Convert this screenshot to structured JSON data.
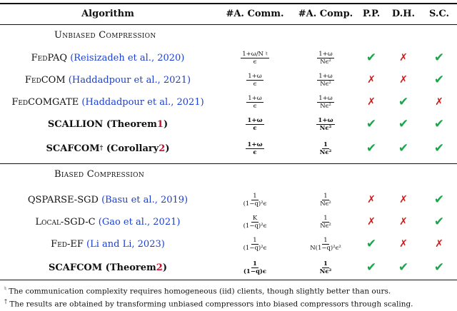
{
  "headers": {
    "algorithm": "Algorithm",
    "comm": "#A. Comm.",
    "comp": "#A. Comp.",
    "pp": "P.P.",
    "dh": "D.H.",
    "sc": "S.C."
  },
  "sections": {
    "unbiased": "Unbiased Compression",
    "biased": "Biased Compression"
  },
  "rows": [
    {
      "name": "FedPAQ",
      "cite": "(Reisizadeh et al., 2020)",
      "comm_num": "1+ω/N ♮",
      "comm_den": "ϵ",
      "comp_num": "1+ω",
      "comp_den": "Nϵ²",
      "pp": "check",
      "dh": "cross",
      "sc": "check"
    },
    {
      "name": "FedCOM",
      "cite": "(Haddadpour et al., 2021)",
      "comm_num": "1+ω",
      "comm_den": "ϵ",
      "comp_num": "1+ω",
      "comp_den": "Nϵ²",
      "pp": "cross",
      "dh": "cross",
      "sc": "check"
    },
    {
      "name": "FedCOMGATE",
      "cite": "(Haddadpour et al., 2021)",
      "comm_num": "1+ω",
      "comm_den": "ϵ",
      "comp_num": "1+ω",
      "comp_den": "Nϵ²",
      "pp": "cross",
      "dh": "check",
      "sc": "cross"
    },
    {
      "name": "SCALLION",
      "paren_pre": "(Theorem ",
      "paren_ref": "1",
      "paren_post": ")",
      "comm_num": "1+ω",
      "comm_den": "ϵ",
      "comp_num": "1+ω",
      "comp_den": "Nϵ²",
      "pp": "check",
      "dh": "check",
      "sc": "check"
    },
    {
      "name": "SCAFCOM",
      "dagger": "†",
      "paren_pre": "(Corollary ",
      "paren_ref": "2",
      "paren_post": ")",
      "comm_num": "1+ω",
      "comm_den": "ϵ",
      "comp_num": "1",
      "comp_den": "Nϵ²",
      "pp": "check",
      "dh": "check",
      "sc": "check"
    },
    {
      "name": "QSPARSE-SGD",
      "cite": "(Basu et al., 2019)",
      "comm_num": "1",
      "comm_den": "(1−q)²ϵ",
      "comp_num": "1",
      "comp_den": "Nϵ²",
      "pp": "cross",
      "dh": "cross",
      "sc": "check"
    },
    {
      "name": "Local-SGD-C",
      "cite": "(Gao et al., 2021)",
      "comm_num": "K",
      "comm_den": "(1−q)²ϵ",
      "comp_num": "1",
      "comp_den": "Nϵ²",
      "pp": "cross",
      "dh": "cross",
      "sc": "check"
    },
    {
      "name": "Fed-EF",
      "cite": "(Li and Li, 2023)",
      "comm_num": "1",
      "comm_den": "(1−q)²ϵ",
      "comp_num": "1",
      "comp_den": "N(1−q)²ϵ²",
      "pp": "check",
      "dh": "cross",
      "sc": "cross"
    },
    {
      "name": "SCAFCOM",
      "paren_pre": "(Theorem ",
      "paren_ref": "2",
      "paren_post": ")",
      "comm_num": "1",
      "comm_den": "(1−q)ϵ",
      "comp_num": "1",
      "comp_den": "Nϵ²",
      "pp": "check",
      "dh": "check",
      "sc": "check"
    }
  ],
  "footnotes": {
    "natural_mark": "♮",
    "natural_text": "The communication complexity requires homogeneous (iid) clients, though slightly better than ours.",
    "dagger_mark": "†",
    "dagger_text": "The results are obtained by transforming unbiased compressors into biased compressors through scaling."
  },
  "colors": {
    "check": "#1aa64a",
    "cross": "#d01a1a",
    "cite": "#1a3fd0",
    "ref": "#c8102e"
  },
  "icons": {
    "check": "✔",
    "cross": "✗"
  }
}
